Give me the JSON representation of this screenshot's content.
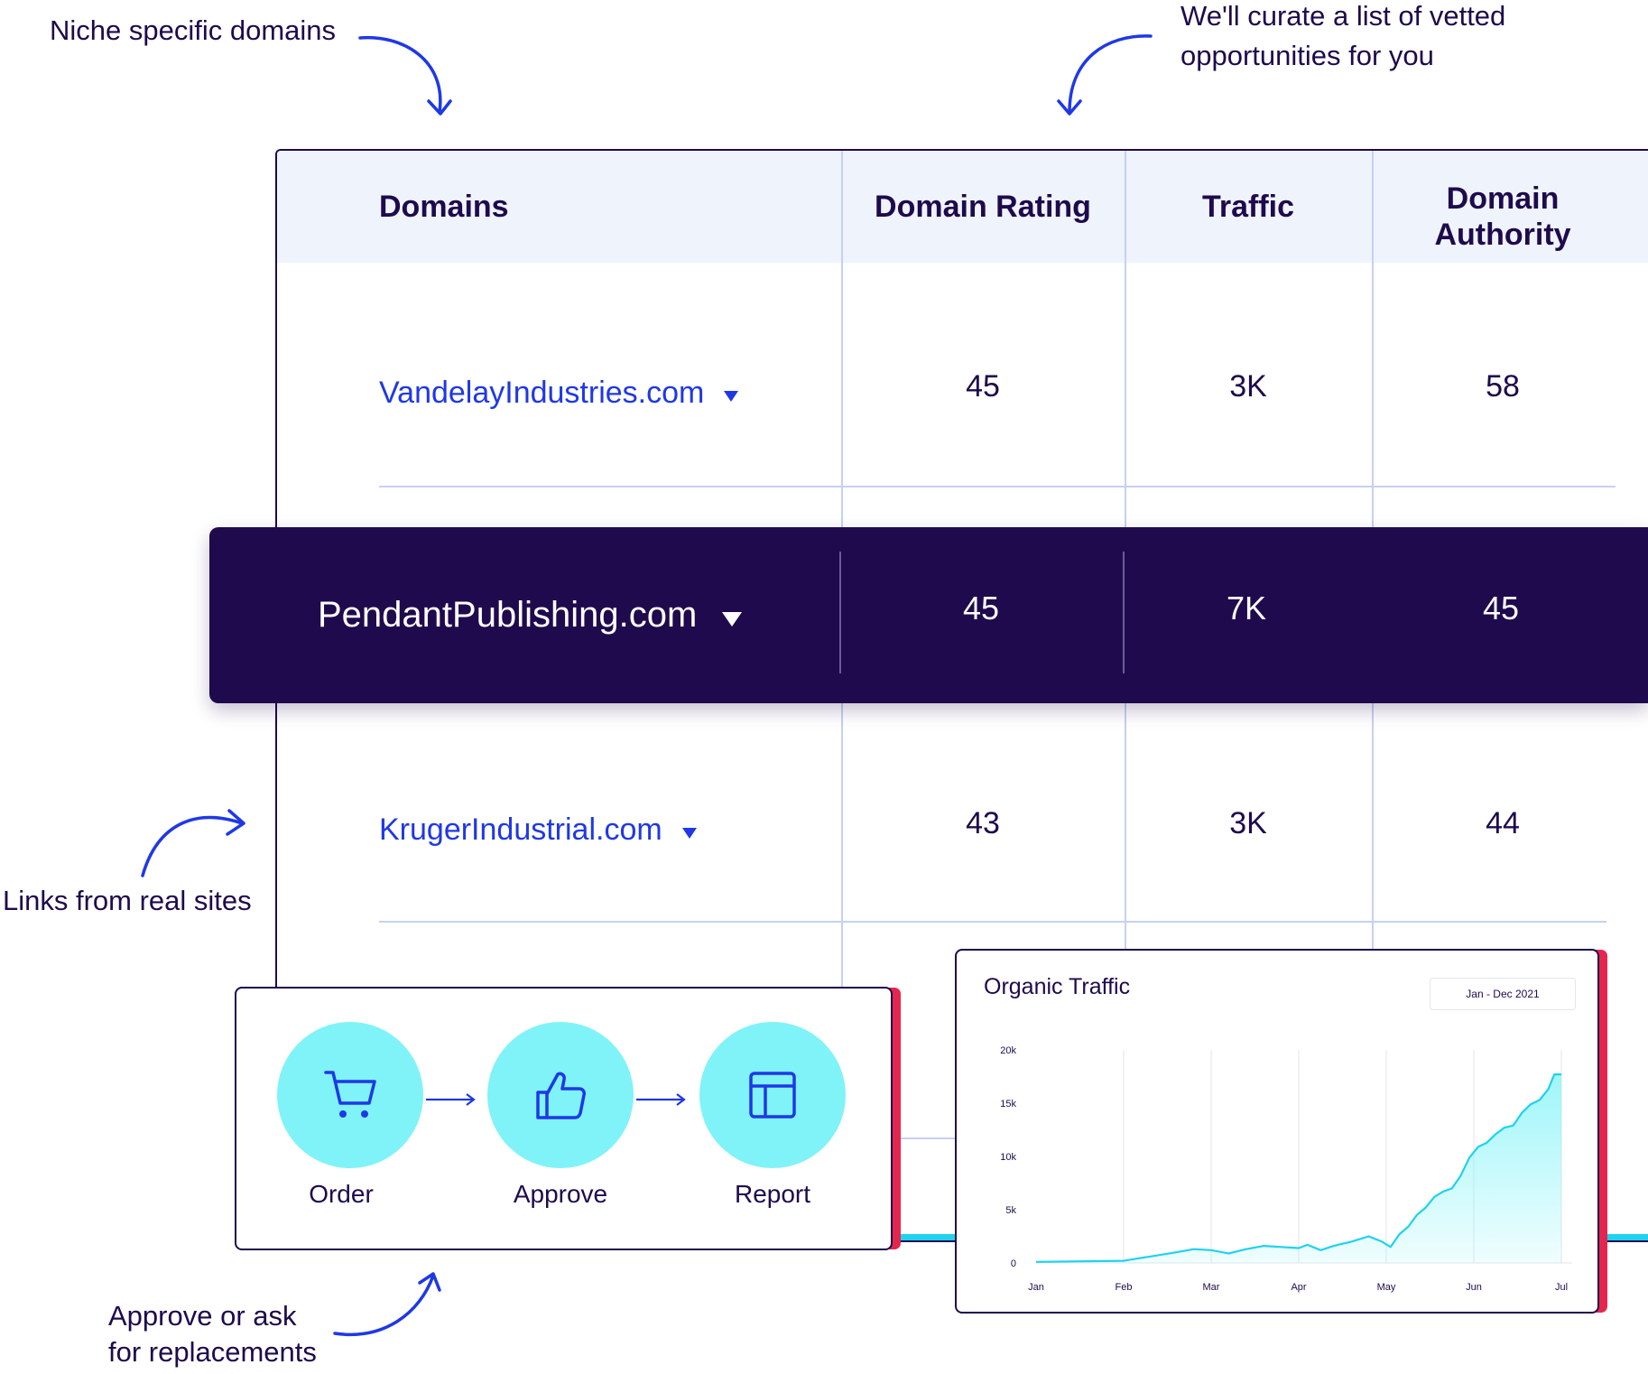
{
  "annotations": {
    "niche": "Niche specific domains",
    "curate_line1": "We'll curate a list of vetted",
    "curate_line2": "opportunities for you",
    "links": "Links from real sites",
    "approve_line1": "Approve or ask",
    "approve_line2": "for replacements"
  },
  "table": {
    "headers": {
      "domains": "Domains",
      "domain_rating": "Domain Rating",
      "traffic": "Traffic",
      "domain_authority_line1": "Domain",
      "domain_authority_line2": "Authority"
    },
    "rows": [
      {
        "domain": "VandelayIndustries.com",
        "domain_rating": "45",
        "traffic": "3K",
        "domain_authority": "58"
      },
      {
        "domain": "PendantPublishing.com",
        "domain_rating": "45",
        "traffic": "7K",
        "domain_authority": "45",
        "highlighted": true
      },
      {
        "domain": "KrugerIndustrial.com",
        "domain_rating": "43",
        "traffic": "3K",
        "domain_authority": "44"
      }
    ]
  },
  "workflow": {
    "steps": [
      {
        "label": "Order",
        "icon": "cart-icon"
      },
      {
        "label": "Approve",
        "icon": "thumbs-up-icon"
      },
      {
        "label": "Report",
        "icon": "layout-icon"
      }
    ]
  },
  "colors": {
    "navy": "#1e0a4c",
    "link_blue": "#1f38e6",
    "cyan": "#7ff3f8",
    "accent_red": "#e4264f",
    "line_cyan": "#1fd2ee"
  },
  "chart_data": {
    "type": "area",
    "title": "Organic Traffic",
    "date_range": "Jan - Dec 2021",
    "x_tick_labels": [
      "Jan",
      "Feb",
      "Mar",
      "Apr",
      "May",
      "Jun",
      "Jul"
    ],
    "y_tick_labels": [
      "0",
      "5k",
      "10k",
      "15k",
      "20k"
    ],
    "ylim": [
      0,
      20000
    ],
    "grid": "vertical",
    "series": [
      {
        "values": [
          [
            0,
            100
          ],
          [
            0.5,
            150
          ],
          [
            1,
            200
          ],
          [
            1.3,
            600
          ],
          [
            1.6,
            1000
          ],
          [
            1.8,
            1300
          ],
          [
            2.0,
            1200
          ],
          [
            2.2,
            900
          ],
          [
            2.4,
            1300
          ],
          [
            2.6,
            1600
          ],
          [
            2.8,
            1500
          ],
          [
            3.0,
            1400
          ],
          [
            3.1,
            1700
          ],
          [
            3.25,
            1200
          ],
          [
            3.4,
            1600
          ],
          [
            3.6,
            2000
          ],
          [
            3.8,
            2500
          ],
          [
            3.95,
            2000
          ],
          [
            4.05,
            1500
          ],
          [
            4.15,
            2700
          ],
          [
            4.25,
            3400
          ],
          [
            4.35,
            4500
          ],
          [
            4.45,
            5200
          ],
          [
            4.55,
            6200
          ],
          [
            4.65,
            6700
          ],
          [
            4.75,
            7000
          ],
          [
            4.85,
            8200
          ],
          [
            4.95,
            9900
          ],
          [
            5.05,
            10900
          ],
          [
            5.15,
            11300
          ],
          [
            5.25,
            12100
          ],
          [
            5.35,
            12700
          ],
          [
            5.45,
            12900
          ],
          [
            5.55,
            14100
          ],
          [
            5.65,
            14900
          ],
          [
            5.75,
            15300
          ],
          [
            5.85,
            16300
          ],
          [
            5.92,
            17700
          ],
          [
            6.0,
            17700
          ]
        ]
      }
    ]
  }
}
